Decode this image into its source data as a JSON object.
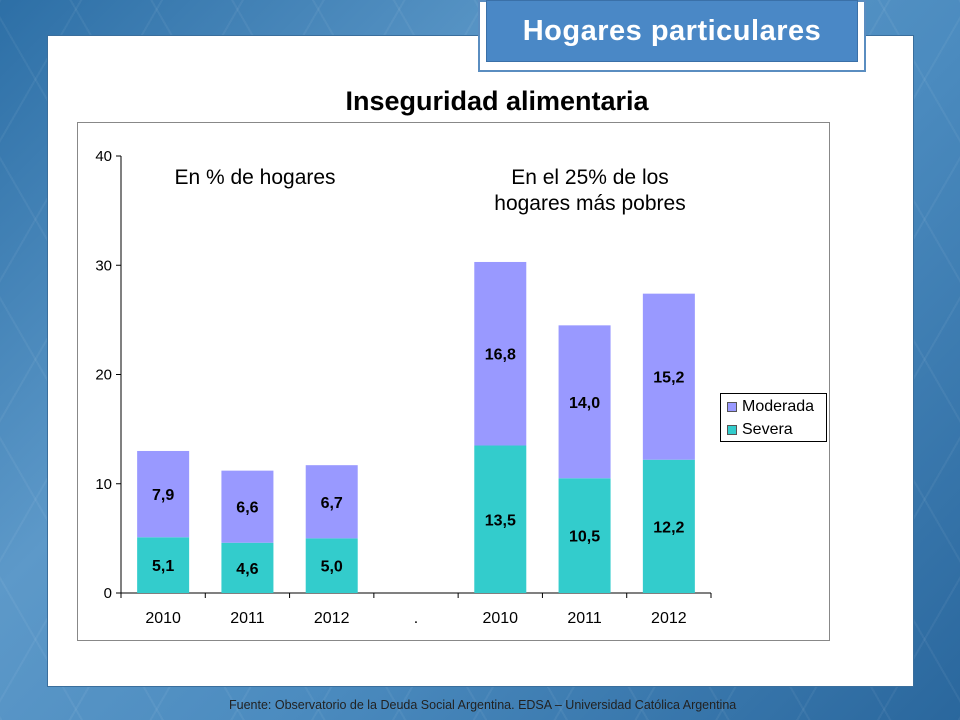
{
  "header": {
    "title": "Hogares particulares"
  },
  "source_text": "Fuente:  Observatorio de  la Deuda Social Argentina. EDSA  – Universidad Católica Argentina",
  "colors": {
    "moderada": "#9999ff",
    "severa": "#33cccc",
    "header_bg": "#4a88c6"
  },
  "chart_data": {
    "type": "bar",
    "stacked": true,
    "title": "Inseguridad alimentaria",
    "annotations": {
      "left": "En % de hogares",
      "right_line1": "En el 25% de los",
      "right_line2": "hogares más pobres"
    },
    "categories": [
      "2010",
      "2011",
      "2012",
      ".",
      "2010",
      "2011",
      "2012"
    ],
    "series": [
      {
        "name": "Severa",
        "values": [
          5.1,
          4.6,
          5.0,
          null,
          13.5,
          10.5,
          12.2
        ],
        "labels": [
          "5,1",
          "4,6",
          "5,0",
          "",
          "13,5",
          "10,5",
          "12,2"
        ]
      },
      {
        "name": "Moderada",
        "values": [
          7.9,
          6.6,
          6.7,
          null,
          16.8,
          14.0,
          15.2
        ],
        "labels": [
          "7,9",
          "6,6",
          "6,7",
          "",
          "16,8",
          "14,0",
          "15,2"
        ]
      }
    ],
    "yticks": [
      "0",
      "10",
      "20",
      "30",
      "40"
    ],
    "ylim": [
      0,
      40
    ],
    "legend_position": "right",
    "grid": false
  }
}
